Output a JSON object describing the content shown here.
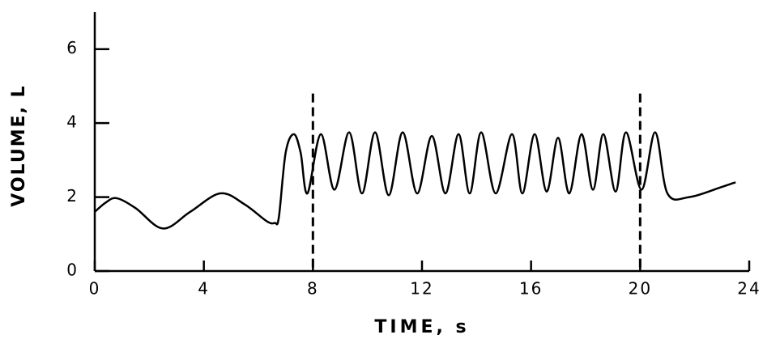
{
  "chart_data": {
    "type": "line",
    "x_label": "TIME, s",
    "y_label": "VOLUME, L",
    "xlim": [
      0,
      24
    ],
    "ylim": [
      0,
      7
    ],
    "xticks": [
      0,
      4,
      8,
      12,
      16,
      20,
      24
    ],
    "yticks": [
      0,
      2,
      4,
      6
    ],
    "reference_lines": {
      "x": [
        8,
        20
      ],
      "ymax": 4.8
    },
    "series": [
      {
        "color": "#000000",
        "x": [
          0,
          0.4,
          0.8,
          1.5,
          2.5,
          3.5,
          4.6,
          5.5,
          6.3,
          6.6,
          6.75,
          7.0,
          7.3,
          7.55,
          7.8,
          8.29,
          8.79,
          9.33,
          9.8,
          10.28,
          10.78,
          11.29,
          11.82,
          12.36,
          12.86,
          13.34,
          13.75,
          14.17,
          14.7,
          15.3,
          15.68,
          16.13,
          16.57,
          16.99,
          17.4,
          17.85,
          18.27,
          18.65,
          19.1,
          19.48,
          20.05,
          20.55,
          21.0,
          21.8,
          22.9,
          23.5
        ],
        "values": [
          1.6,
          1.85,
          1.97,
          1.7,
          1.15,
          1.6,
          2.1,
          1.8,
          1.35,
          1.3,
          1.45,
          3.2,
          3.7,
          3.2,
          2.1,
          3.7,
          2.2,
          3.75,
          2.1,
          3.75,
          2.05,
          3.75,
          2.1,
          3.65,
          2.1,
          3.7,
          2.1,
          3.75,
          2.1,
          3.7,
          2.1,
          3.7,
          2.15,
          3.6,
          2.1,
          3.7,
          2.2,
          3.7,
          2.15,
          3.75,
          2.2,
          3.75,
          2.1,
          2.0,
          2.25,
          2.4
        ]
      }
    ]
  }
}
